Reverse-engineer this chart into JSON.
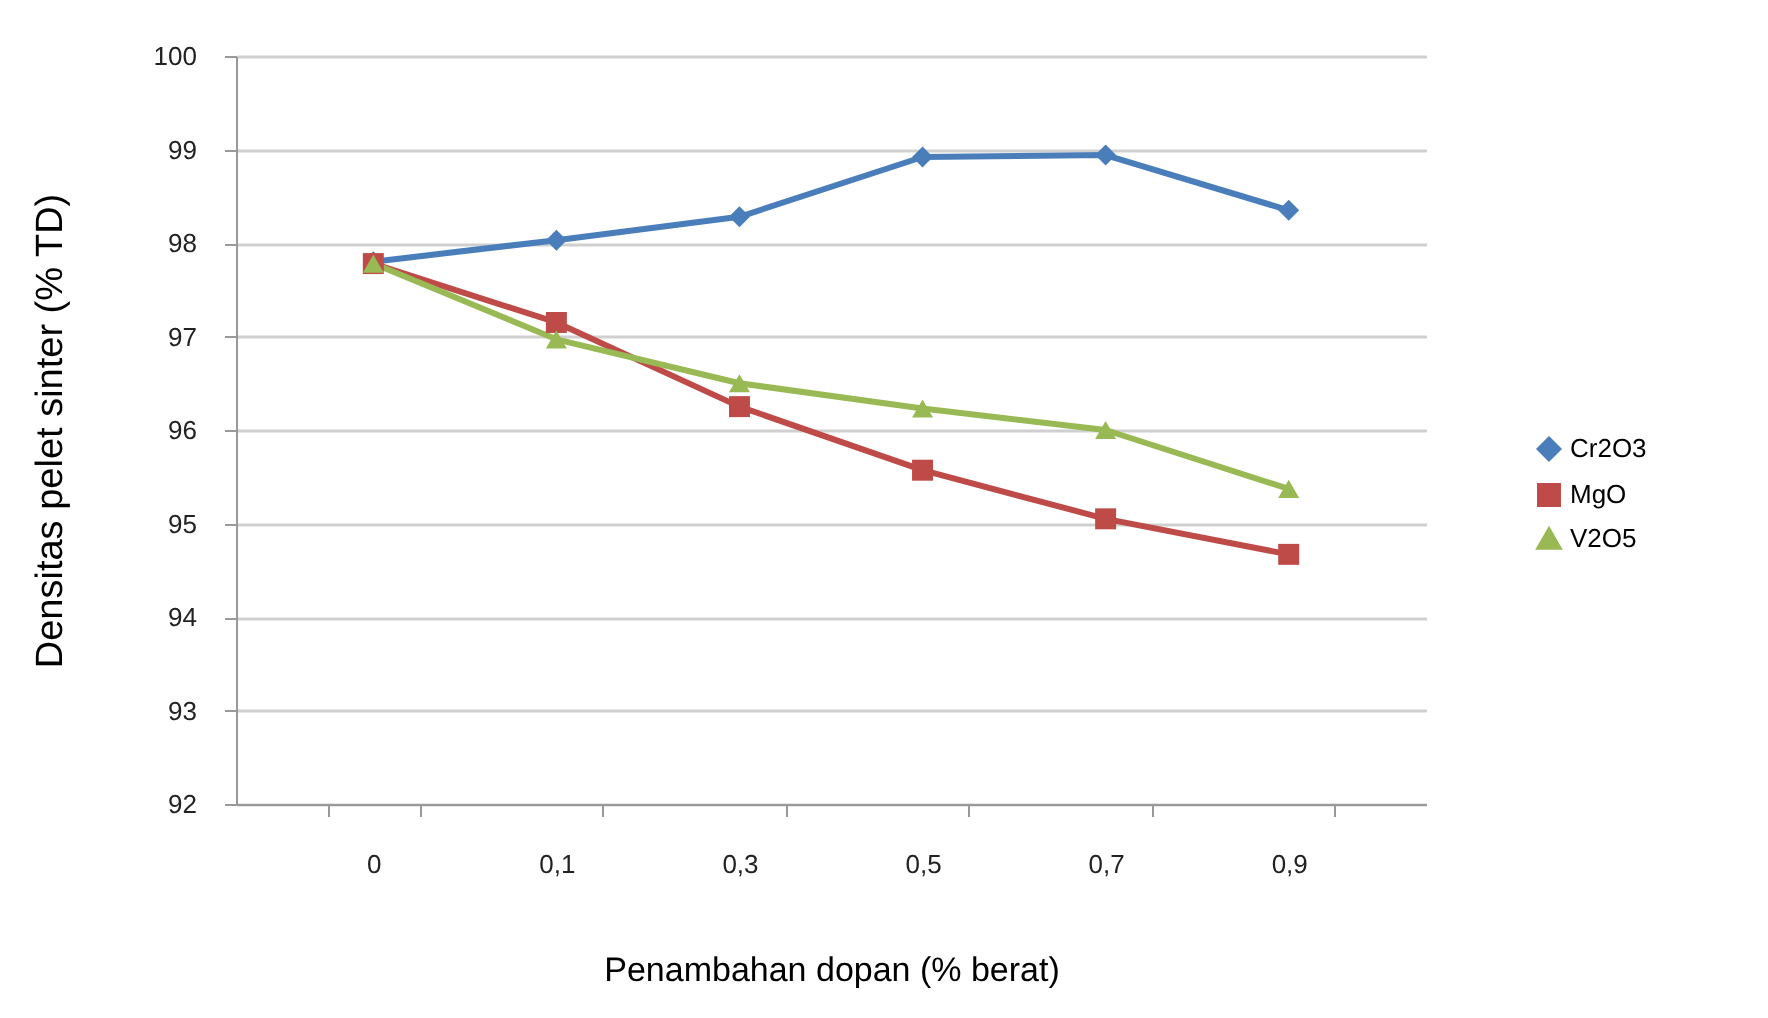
{
  "chart_data": {
    "type": "line",
    "xlabel": "Penambahan dopan (% berat)",
    "ylabel": "Densitas pelet sinter  (% TD)",
    "categories": [
      "0",
      "0,1",
      "0,3",
      "0,5",
      "0,7",
      "0,9"
    ],
    "series": [
      {
        "name": "Cr2O3",
        "color": "#4a7ebb",
        "marker": "diamond",
        "values": [
          97.8,
          98.03,
          98.28,
          98.92,
          98.94,
          98.35
        ]
      },
      {
        "name": "MgO",
        "color": "#be4b48",
        "marker": "square",
        "values": [
          97.78,
          97.15,
          96.25,
          95.57,
          95.05,
          94.67
        ]
      },
      {
        "name": "V2O5",
        "color": "#98b954",
        "marker": "triangle",
        "values": [
          97.78,
          96.97,
          96.5,
          96.23,
          96.0,
          95.37
        ]
      }
    ],
    "ylim": [
      92,
      100
    ],
    "yticks": [
      92,
      93,
      94,
      95,
      96,
      97,
      98,
      99,
      100
    ],
    "grid": "y",
    "legend": "right",
    "line_style": "solid"
  }
}
